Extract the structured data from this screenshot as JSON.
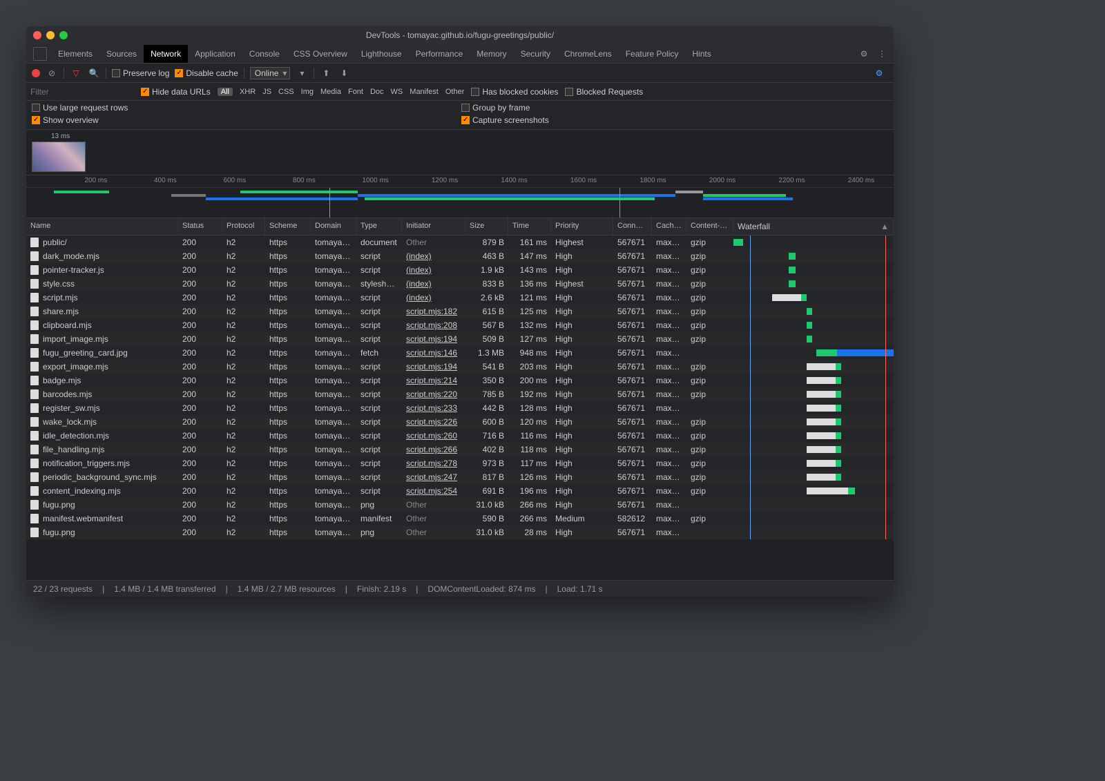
{
  "colors": {
    "bg": "#202124",
    "accent": "#ff8a00",
    "red": "#e8453c",
    "green": "#1ec86f",
    "blue": "#1a73e8",
    "lightblue": "#59a9ff",
    "loadred": "#ff6b5b",
    "traffic_red": "#ff5f57",
    "traffic_yellow": "#febc2e",
    "traffic_green": "#28c840"
  },
  "window": {
    "title": "DevTools - tomayac.github.io/fugu-greetings/public/"
  },
  "tabs": {
    "items": [
      "Elements",
      "Sources",
      "Network",
      "Application",
      "Console",
      "CSS Overview",
      "Lighthouse",
      "Performance",
      "Memory",
      "Security",
      "ChromeLens",
      "Feature Policy",
      "Hints"
    ],
    "active": "Network"
  },
  "toolbar": {
    "preserve_log": "Preserve log",
    "disable_cache": "Disable cache",
    "throttle": "Online"
  },
  "filter": {
    "placeholder": "Filter",
    "hide_data_urls": "Hide data URLs",
    "types": [
      "All",
      "XHR",
      "JS",
      "CSS",
      "Img",
      "Media",
      "Font",
      "Doc",
      "WS",
      "Manifest",
      "Other"
    ],
    "selected": "All",
    "has_blocked": "Has blocked cookies",
    "blocked_requests": "Blocked Requests"
  },
  "options": {
    "large_rows": "Use large request rows",
    "group_by_frame": "Group by frame",
    "show_overview": "Show overview",
    "capture_screenshots": "Capture screenshots"
  },
  "thumbnail": {
    "label": "13 ms"
  },
  "timeline": {
    "max_ms": 2500,
    "ticks": [
      200,
      400,
      600,
      800,
      1000,
      1200,
      1400,
      1600,
      1800,
      2000,
      2200,
      2400
    ],
    "dcl_ms": 874,
    "load_ms": 1710,
    "bars": [
      {
        "start": 40,
        "end": 120,
        "color": "#1ec86f"
      },
      {
        "start": 210,
        "end": 260,
        "color": "#777"
      },
      {
        "start": 260,
        "end": 480,
        "color": "#1a73e8"
      },
      {
        "start": 310,
        "end": 480,
        "color": "#1ec86f"
      },
      {
        "start": 480,
        "end": 940,
        "color": "#1a73e8"
      },
      {
        "start": 490,
        "end": 910,
        "color": "#1ec86f"
      },
      {
        "start": 940,
        "end": 980,
        "color": "#999"
      },
      {
        "start": 980,
        "end": 1100,
        "color": "#1ec86f"
      },
      {
        "start": 980,
        "end": 1110,
        "color": "#1a73e8"
      }
    ]
  },
  "columns": [
    "Name",
    "Status",
    "Protocol",
    "Scheme",
    "Domain",
    "Type",
    "Initiator",
    "Size",
    "Time",
    "Priority",
    "Conne…",
    "Cach…",
    "Content-…",
    "Waterfall"
  ],
  "rows": [
    {
      "name": "public/",
      "status": "200",
      "protocol": "h2",
      "scheme": "https",
      "domain": "tomayac…",
      "type": "document",
      "initiator": "Other",
      "initOther": true,
      "size": "879 B",
      "time": "161 ms",
      "priority": "Highest",
      "conn": "567671",
      "cache": "max-…",
      "enc": "gzip",
      "wf": {
        "wait": 0,
        "dl": 14,
        "pos": 0
      }
    },
    {
      "name": "dark_mode.mjs",
      "status": "200",
      "protocol": "h2",
      "scheme": "https",
      "domain": "tomayac…",
      "type": "script",
      "initiator": "(index)",
      "size": "463 B",
      "time": "147 ms",
      "priority": "High",
      "conn": "567671",
      "cache": "max-…",
      "enc": "gzip",
      "wf": {
        "wait": 0,
        "dl": 10,
        "pos": 80
      }
    },
    {
      "name": "pointer-tracker.js",
      "status": "200",
      "protocol": "h2",
      "scheme": "https",
      "domain": "tomayac…",
      "type": "script",
      "initiator": "(index)",
      "size": "1.9 kB",
      "time": "143 ms",
      "priority": "High",
      "conn": "567671",
      "cache": "max-…",
      "enc": "gzip",
      "wf": {
        "wait": 0,
        "dl": 10,
        "pos": 80
      }
    },
    {
      "name": "style.css",
      "status": "200",
      "protocol": "h2",
      "scheme": "https",
      "domain": "tomayac…",
      "type": "stylesheet",
      "initiator": "(index)",
      "size": "833 B",
      "time": "136 ms",
      "priority": "Highest",
      "conn": "567671",
      "cache": "max-…",
      "enc": "gzip",
      "wf": {
        "wait": 0,
        "dl": 10,
        "pos": 80
      }
    },
    {
      "name": "script.mjs",
      "status": "200",
      "protocol": "h2",
      "scheme": "https",
      "domain": "tomayac…",
      "type": "script",
      "initiator": "(index)",
      "size": "2.6 kB",
      "time": "121 ms",
      "priority": "High",
      "conn": "567671",
      "cache": "max-…",
      "enc": "gzip",
      "wf": {
        "wait": 42,
        "dl": 8,
        "pos": 56
      }
    },
    {
      "name": "share.mjs",
      "status": "200",
      "protocol": "h2",
      "scheme": "https",
      "domain": "tomayac…",
      "type": "script",
      "initiator": "script.mjs:182",
      "size": "615 B",
      "time": "125 ms",
      "priority": "High",
      "conn": "567671",
      "cache": "max-…",
      "enc": "gzip",
      "wf": {
        "wait": 0,
        "dl": 8,
        "pos": 106
      }
    },
    {
      "name": "clipboard.mjs",
      "status": "200",
      "protocol": "h2",
      "scheme": "https",
      "domain": "tomayac…",
      "type": "script",
      "initiator": "script.mjs:208",
      "size": "567 B",
      "time": "132 ms",
      "priority": "High",
      "conn": "567671",
      "cache": "max-…",
      "enc": "gzip",
      "wf": {
        "wait": 0,
        "dl": 8,
        "pos": 106
      }
    },
    {
      "name": "import_image.mjs",
      "status": "200",
      "protocol": "h2",
      "scheme": "https",
      "domain": "tomayac…",
      "type": "script",
      "initiator": "script.mjs:194",
      "size": "509 B",
      "time": "127 ms",
      "priority": "High",
      "conn": "567671",
      "cache": "max-…",
      "enc": "gzip",
      "wf": {
        "wait": 0,
        "dl": 8,
        "pos": 106
      }
    },
    {
      "name": "fugu_greeting_card.jpg",
      "status": "200",
      "protocol": "h2",
      "scheme": "https",
      "domain": "tomayac…",
      "type": "fetch",
      "initiator": "script.mjs:146",
      "size": "1.3 MB",
      "time": "948 ms",
      "priority": "High",
      "conn": "567671",
      "cache": "max-…",
      "enc": "",
      "wf": {
        "wait": 0,
        "dl": 160,
        "pos": 120,
        "blue": true
      }
    },
    {
      "name": "export_image.mjs",
      "status": "200",
      "protocol": "h2",
      "scheme": "https",
      "domain": "tomayac…",
      "type": "script",
      "initiator": "script.mjs:194",
      "size": "541 B",
      "time": "203 ms",
      "priority": "High",
      "conn": "567671",
      "cache": "max-…",
      "enc": "gzip",
      "wf": {
        "wait": 42,
        "dl": 8,
        "pos": 106
      }
    },
    {
      "name": "badge.mjs",
      "status": "200",
      "protocol": "h2",
      "scheme": "https",
      "domain": "tomayac…",
      "type": "script",
      "initiator": "script.mjs:214",
      "size": "350 B",
      "time": "200 ms",
      "priority": "High",
      "conn": "567671",
      "cache": "max-…",
      "enc": "gzip",
      "wf": {
        "wait": 42,
        "dl": 8,
        "pos": 106
      }
    },
    {
      "name": "barcodes.mjs",
      "status": "200",
      "protocol": "h2",
      "scheme": "https",
      "domain": "tomayac…",
      "type": "script",
      "initiator": "script.mjs:220",
      "size": "785 B",
      "time": "192 ms",
      "priority": "High",
      "conn": "567671",
      "cache": "max-…",
      "enc": "gzip",
      "wf": {
        "wait": 42,
        "dl": 8,
        "pos": 106
      }
    },
    {
      "name": "register_sw.mjs",
      "status": "200",
      "protocol": "h2",
      "scheme": "https",
      "domain": "tomayac…",
      "type": "script",
      "initiator": "script.mjs:233",
      "size": "442 B",
      "time": "128 ms",
      "priority": "High",
      "conn": "567671",
      "cache": "max-…",
      "enc": "",
      "wf": {
        "wait": 42,
        "dl": 8,
        "pos": 106
      }
    },
    {
      "name": "wake_lock.mjs",
      "status": "200",
      "protocol": "h2",
      "scheme": "https",
      "domain": "tomayac…",
      "type": "script",
      "initiator": "script.mjs:226",
      "size": "600 B",
      "time": "120 ms",
      "priority": "High",
      "conn": "567671",
      "cache": "max-…",
      "enc": "gzip",
      "wf": {
        "wait": 42,
        "dl": 8,
        "pos": 106
      }
    },
    {
      "name": "idle_detection.mjs",
      "status": "200",
      "protocol": "h2",
      "scheme": "https",
      "domain": "tomayac…",
      "type": "script",
      "initiator": "script.mjs:260",
      "size": "716 B",
      "time": "116 ms",
      "priority": "High",
      "conn": "567671",
      "cache": "max-…",
      "enc": "gzip",
      "wf": {
        "wait": 42,
        "dl": 8,
        "pos": 106
      }
    },
    {
      "name": "file_handling.mjs",
      "status": "200",
      "protocol": "h2",
      "scheme": "https",
      "domain": "tomayac…",
      "type": "script",
      "initiator": "script.mjs:266",
      "size": "402 B",
      "time": "118 ms",
      "priority": "High",
      "conn": "567671",
      "cache": "max-…",
      "enc": "gzip",
      "wf": {
        "wait": 42,
        "dl": 8,
        "pos": 106
      }
    },
    {
      "name": "notification_triggers.mjs",
      "status": "200",
      "protocol": "h2",
      "scheme": "https",
      "domain": "tomayac…",
      "type": "script",
      "initiator": "script.mjs:278",
      "size": "973 B",
      "time": "117 ms",
      "priority": "High",
      "conn": "567671",
      "cache": "max-…",
      "enc": "gzip",
      "wf": {
        "wait": 42,
        "dl": 8,
        "pos": 106
      }
    },
    {
      "name": "periodic_background_sync.mjs",
      "status": "200",
      "protocol": "h2",
      "scheme": "https",
      "domain": "tomayac…",
      "type": "script",
      "initiator": "script.mjs:247",
      "size": "817 B",
      "time": "126 ms",
      "priority": "High",
      "conn": "567671",
      "cache": "max-…",
      "enc": "gzip",
      "wf": {
        "wait": 42,
        "dl": 8,
        "pos": 106
      }
    },
    {
      "name": "content_indexing.mjs",
      "status": "200",
      "protocol": "h2",
      "scheme": "https",
      "domain": "tomayac…",
      "type": "script",
      "initiator": "script.mjs:254",
      "size": "691 B",
      "time": "196 ms",
      "priority": "High",
      "conn": "567671",
      "cache": "max-…",
      "enc": "gzip",
      "wf": {
        "wait": 60,
        "dl": 10,
        "pos": 106
      }
    },
    {
      "name": "fugu.png",
      "status": "200",
      "protocol": "h2",
      "scheme": "https",
      "domain": "tomayac…",
      "type": "png",
      "initiator": "Other",
      "initOther": true,
      "size": "31.0 kB",
      "time": "266 ms",
      "priority": "High",
      "conn": "567671",
      "cache": "max-…",
      "enc": "",
      "wf": {
        "wait": 0,
        "dl": 14,
        "pos": 290
      }
    },
    {
      "name": "manifest.webmanifest",
      "status": "200",
      "protocol": "h2",
      "scheme": "https",
      "domain": "tomayac…",
      "type": "manifest",
      "initiator": "Other",
      "initOther": true,
      "size": "590 B",
      "time": "266 ms",
      "priority": "Medium",
      "conn": "582612",
      "cache": "max-…",
      "enc": "gzip",
      "wf": {
        "wait": 0,
        "dl": 12,
        "pos": 290
      }
    },
    {
      "name": "fugu.png",
      "status": "200",
      "protocol": "h2",
      "scheme": "https",
      "domain": "tomayac…",
      "type": "png",
      "initiator": "Other",
      "initOther": true,
      "size": "31.0 kB",
      "time": "28 ms",
      "priority": "High",
      "conn": "567671",
      "cache": "max-…",
      "enc": "",
      "wf": {
        "wait": 0,
        "dl": 4,
        "pos": 310
      }
    }
  ],
  "status": {
    "requests": "22 / 23 requests",
    "transferred": "1.4 MB / 1.4 MB transferred",
    "resources": "1.4 MB / 2.7 MB resources",
    "finish": "Finish: 2.19 s",
    "dcl": "DOMContentLoaded: 874 ms",
    "load": "Load: 1.71 s"
  }
}
